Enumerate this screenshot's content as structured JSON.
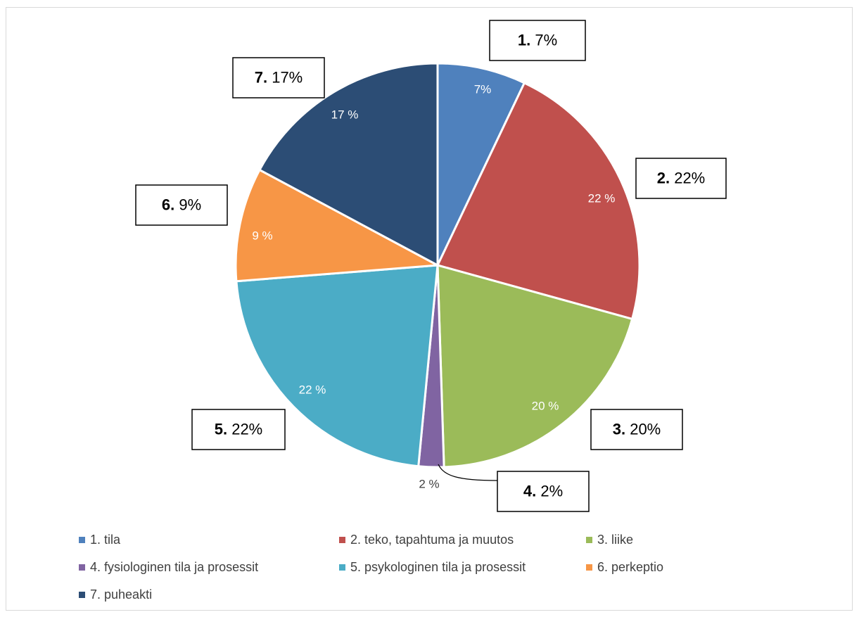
{
  "chart_data": {
    "type": "pie",
    "categories": [
      "1. tila",
      "2. teko, tapahtuma ja muutos",
      "3. liike",
      "4. fysiologinen tila ja prosessit",
      "5. psykologinen tila ja prosessit",
      "6. perkeptio",
      "7. puheakti"
    ],
    "values": [
      7,
      22,
      20,
      2,
      22,
      9,
      17
    ],
    "colors": [
      "#4F81BD",
      "#C0504D",
      "#9BBB59",
      "#8064A2",
      "#4BACC6",
      "#F79646",
      "#2C4D75"
    ],
    "slice_labels": [
      "7%",
      "22 %",
      "20 %",
      "2 %",
      "22 %",
      "9 %",
      "17 %"
    ],
    "callouts": [
      {
        "number": "1.",
        "percent": "7%"
      },
      {
        "number": "2.",
        "percent": "22%"
      },
      {
        "number": "3.",
        "percent": "20%"
      },
      {
        "number": "4.",
        "percent": "2%"
      },
      {
        "number": "5.",
        "percent": "22%"
      },
      {
        "number": "6.",
        "percent": "9%"
      },
      {
        "number": "7.",
        "percent": "17%"
      }
    ],
    "legend_position": "bottom"
  }
}
